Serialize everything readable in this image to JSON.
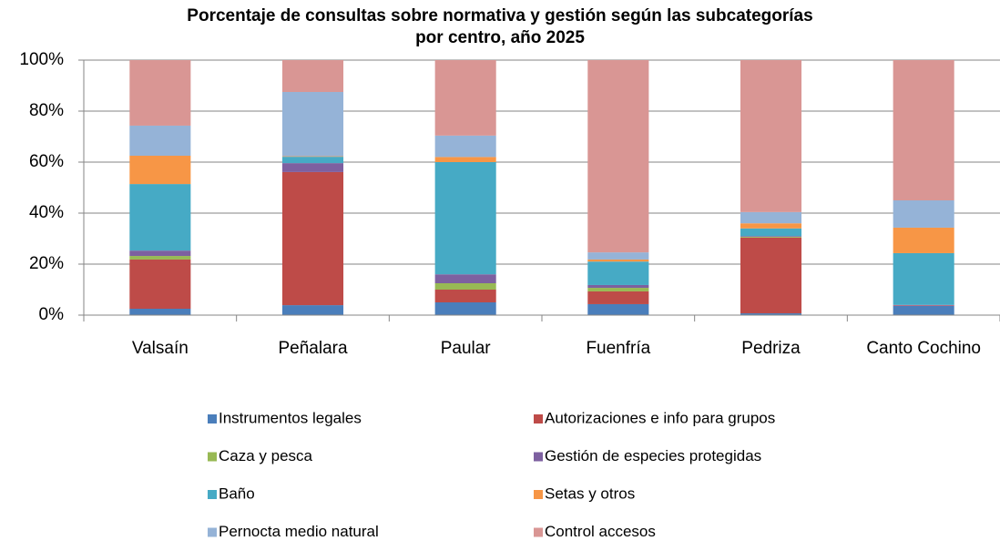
{
  "chart_data": {
    "type": "stacked_bar",
    "title": "Porcentaje de consultas sobre normativa y gestión según las subcategorías por centro, año 2025",
    "categories": [
      "Valsaín",
      "Peñalara",
      "Paular",
      "Fuenfría",
      "Pedriza",
      "Canto Cochino"
    ],
    "series": [
      {
        "name": "Instrumentos legales",
        "color": "#4a7ebb",
        "values": [
          2.5,
          3.9,
          5,
          4.3,
          0.7,
          3.6
        ]
      },
      {
        "name": "Autorizaciones e info para grupos",
        "color": "#be4b48",
        "values": [
          19.3,
          52.2,
          5,
          5,
          29.7,
          0.2
        ]
      },
      {
        "name": "Caza y pesca",
        "color": "#98b954",
        "values": [
          1.4,
          0,
          2.5,
          1.4,
          0.3,
          0
        ]
      },
      {
        "name": "Gestión de especies protegidas",
        "color": "#7d60a0",
        "values": [
          2.1,
          3.5,
          3.5,
          1.1,
          0.3,
          0.2
        ]
      },
      {
        "name": "Baño",
        "color": "#46aac5",
        "values": [
          26.1,
          2.5,
          44,
          9.2,
          3,
          20.3
        ]
      },
      {
        "name": "Setas y otros",
        "color": "#f79646",
        "values": [
          11.1,
          0.2,
          2,
          0.8,
          2,
          10
        ]
      },
      {
        "name": "Pernocta medio natural",
        "color": "#95b3d7",
        "values": [
          11.8,
          25.2,
          8.4,
          2.8,
          4.4,
          10.7
        ]
      },
      {
        "name": "Control accesos",
        "color": "#d99694",
        "values": [
          25.7,
          12.5,
          29.6,
          75.4,
          59.6,
          55
        ]
      }
    ],
    "ylim": [
      0,
      100
    ],
    "yticks": [
      {
        "value": 0,
        "label": "0%"
      },
      {
        "value": 20,
        "label": "20%"
      },
      {
        "value": 40,
        "label": "40%"
      },
      {
        "value": 60,
        "label": "60%"
      },
      {
        "value": 80,
        "label": "80%"
      },
      {
        "value": 100,
        "label": "100%"
      }
    ],
    "grid": true,
    "legend": "bottom"
  }
}
